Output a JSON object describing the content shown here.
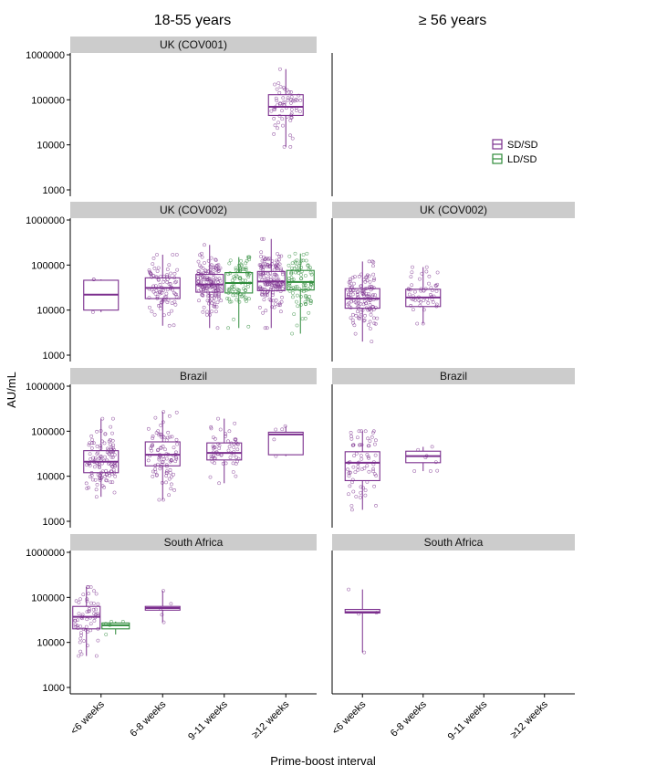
{
  "chart_data": {
    "type": "boxplot",
    "column_titles": [
      "18-55 years",
      "≥ 56 years"
    ],
    "row_titles": [
      "UK (COV001)",
      "UK (COV002)",
      "Brazil",
      "South Africa"
    ],
    "ylabel": "AU/mL",
    "xlabel": "Prime-boost interval",
    "y_scale": "log",
    "ylim": [
      1000,
      1000000
    ],
    "y_ticks": [
      "1000",
      "10000",
      "100000",
      "1000000"
    ],
    "categories": [
      "<6 weeks",
      "6-8 weeks",
      "9-11 weeks",
      "≥12 weeks"
    ],
    "legend": {
      "placement": "right",
      "entries": [
        "SD/SD",
        "LD/SD"
      ]
    },
    "colors": {
      "SD/SD": "#7b2f8e",
      "LD/SD": "#2e8b3a",
      "strip": "#cccccc"
    },
    "panels": [
      {
        "row": 0,
        "col": 0,
        "title": "UK (COV001)",
        "boxes": [
          {
            "category": "≥12 weeks",
            "series": "SD/SD",
            "q1": 45000,
            "median": 70000,
            "q3": 130000,
            "whisker_low": 9000,
            "whisker_high": 480000,
            "n": 60
          }
        ]
      },
      {
        "row": 0,
        "col": 1,
        "title": "",
        "boxes": []
      },
      {
        "row": 1,
        "col": 0,
        "title": "UK (COV002)",
        "boxes": [
          {
            "category": "<6 weeks",
            "series": "SD/SD",
            "q1": 10000,
            "median": 22000,
            "q3": 46000,
            "whisker_low": 9000,
            "whisker_high": 48000,
            "n": 3
          },
          {
            "category": "6-8 weeks",
            "series": "SD/SD",
            "q1": 18000,
            "median": 31000,
            "q3": 52000,
            "whisker_low": 4500,
            "whisker_high": 170000,
            "n": 90
          },
          {
            "category": "9-11 weeks",
            "series": "SD/SD",
            "q1": 25000,
            "median": 37000,
            "q3": 62000,
            "whisker_low": 4000,
            "whisker_high": 280000,
            "n": 150
          },
          {
            "category": "9-11 weeks",
            "series": "LD/SD",
            "q1": 24000,
            "median": 40000,
            "q3": 68000,
            "whisker_low": 4000,
            "whisker_high": 150000,
            "n": 80
          },
          {
            "category": "≥12 weeks",
            "series": "SD/SD",
            "q1": 27000,
            "median": 43000,
            "q3": 72000,
            "whisker_low": 4000,
            "whisker_high": 380000,
            "n": 150
          },
          {
            "category": "≥12 weeks",
            "series": "LD/SD",
            "q1": 28000,
            "median": 42000,
            "q3": 76000,
            "whisker_low": 3000,
            "whisker_high": 180000,
            "n": 90
          }
        ]
      },
      {
        "row": 1,
        "col": 1,
        "title": "UK (COV002)",
        "boxes": [
          {
            "category": "<6 weeks",
            "series": "SD/SD",
            "q1": 11000,
            "median": 18000,
            "q3": 30000,
            "whisker_low": 2000,
            "whisker_high": 120000,
            "n": 130
          },
          {
            "category": "6-8 weeks",
            "series": "SD/SD",
            "q1": 12000,
            "median": 19000,
            "q3": 29000,
            "whisker_low": 5000,
            "whisker_high": 90000,
            "n": 50
          }
        ]
      },
      {
        "row": 2,
        "col": 0,
        "title": "Brazil",
        "boxes": [
          {
            "category": "<6 weeks",
            "series": "SD/SD",
            "q1": 12000,
            "median": 21000,
            "q3": 37000,
            "whisker_low": 3500,
            "whisker_high": 190000,
            "n": 120
          },
          {
            "category": "6-8 weeks",
            "series": "SD/SD",
            "q1": 17000,
            "median": 30000,
            "q3": 58000,
            "whisker_low": 3000,
            "whisker_high": 270000,
            "n": 90
          },
          {
            "category": "9-11 weeks",
            "series": "SD/SD",
            "q1": 23000,
            "median": 33000,
            "q3": 55000,
            "whisker_low": 7000,
            "whisker_high": 190000,
            "n": 60
          },
          {
            "category": "≥12 weeks",
            "series": "SD/SD",
            "q1": 30000,
            "median": 85000,
            "q3": 95000,
            "whisker_low": 28000,
            "whisker_high": 130000,
            "n": 5
          }
        ]
      },
      {
        "row": 2,
        "col": 1,
        "title": "Brazil",
        "boxes": [
          {
            "category": "<6 weeks",
            "series": "SD/SD",
            "q1": 8000,
            "median": 20000,
            "q3": 35000,
            "whisker_low": 1800,
            "whisker_high": 100000,
            "n": 70
          },
          {
            "category": "6-8 weeks",
            "series": "SD/SD",
            "q1": 20000,
            "median": 28000,
            "q3": 36000,
            "whisker_low": 13000,
            "whisker_high": 45000,
            "n": 8
          }
        ]
      },
      {
        "row": 3,
        "col": 0,
        "title": "South Africa",
        "boxes": [
          {
            "category": "<6 weeks",
            "series": "SD/SD",
            "q1": 20000,
            "median": 37000,
            "q3": 63000,
            "whisker_low": 5000,
            "whisker_high": 170000,
            "n": 60
          },
          {
            "category": "<6 weeks",
            "series": "LD/SD",
            "q1": 20000,
            "median": 24000,
            "q3": 27000,
            "whisker_low": 15000,
            "whisker_high": 29000,
            "n": 5
          },
          {
            "category": "6-8 weeks",
            "series": "SD/SD",
            "q1": 52000,
            "median": 58000,
            "q3": 63000,
            "whisker_low": 28000,
            "whisker_high": 140000,
            "n": 5
          }
        ]
      },
      {
        "row": 3,
        "col": 1,
        "title": "South Africa",
        "boxes": [
          {
            "category": "<6 weeks",
            "series": "SD/SD",
            "q1": 45000,
            "median": 47000,
            "q3": 54000,
            "whisker_low": 6000,
            "whisker_high": 150000,
            "n": 4
          }
        ]
      }
    ]
  }
}
